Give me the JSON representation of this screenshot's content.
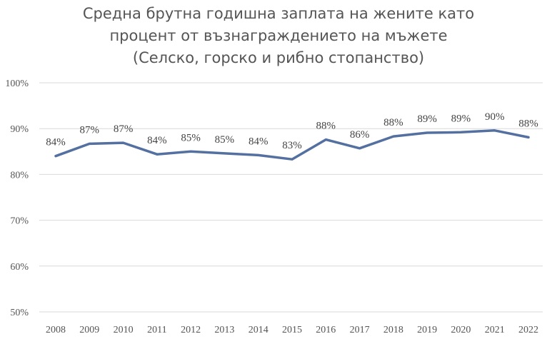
{
  "chart_data": {
    "type": "line",
    "title_lines": [
      "Средна брутна годишна заплата на жените като",
      "процент от възнаграждението на мъжете",
      "(Селско, горско и рибно стопанство)"
    ],
    "xlabel": "",
    "ylabel": "",
    "categories": [
      "2008",
      "2009",
      "2010",
      "2011",
      "2012",
      "2013",
      "2014",
      "2015",
      "2016",
      "2017",
      "2018",
      "2019",
      "2020",
      "2021",
      "2022"
    ],
    "values": [
      84.0,
      86.7,
      86.9,
      84.4,
      85.0,
      84.6,
      84.2,
      83.3,
      87.6,
      85.7,
      88.3,
      89.1,
      89.2,
      89.6,
      88.1
    ],
    "data_labels": [
      "84%",
      "87%",
      "87%",
      "84%",
      "85%",
      "85%",
      "84%",
      "83%",
      "88%",
      "86%",
      "88%",
      "89%",
      "89%",
      "90%",
      "88%"
    ],
    "yticks": [
      50,
      60,
      70,
      80,
      90,
      100
    ],
    "ytick_labels": [
      "50%",
      "60%",
      "70%",
      "80%",
      "90%",
      "100%"
    ],
    "ylim": [
      50,
      100
    ],
    "grid": true,
    "legend": "none",
    "series_color": "#5470a0",
    "grid_color": "#d9d9d9"
  }
}
